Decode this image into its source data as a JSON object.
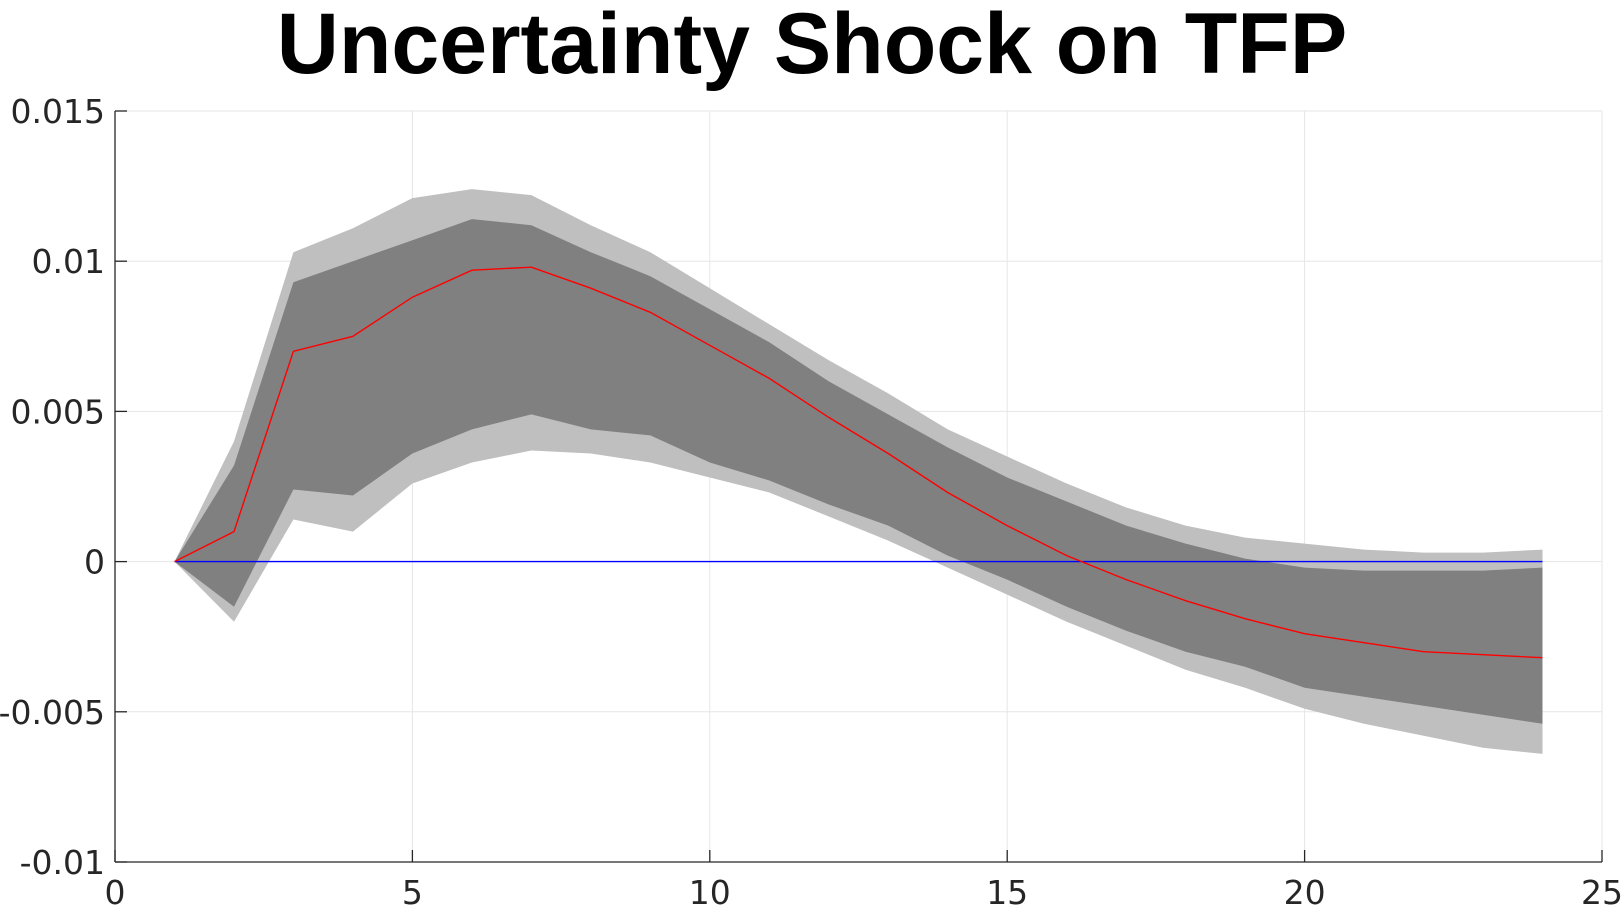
{
  "chart_data": {
    "type": "line",
    "title": "Uncertainty Shock on TFP",
    "xlabel": "",
    "ylabel": "",
    "xlim": [
      0,
      25
    ],
    "ylim": [
      -0.01,
      0.015
    ],
    "x_ticks": [
      0,
      5,
      10,
      15,
      20,
      25
    ],
    "x_tick_labels": [
      "0",
      "5",
      "10",
      "15",
      "20",
      "25"
    ],
    "y_ticks": [
      -0.01,
      -0.005,
      0,
      0.005,
      0.01,
      0.015
    ],
    "y_tick_labels": [
      "-0.01",
      "-0.005",
      "0",
      "0.005",
      "0.01",
      "0.015"
    ],
    "grid": true,
    "x": [
      1,
      2,
      3,
      4,
      5,
      6,
      7,
      8,
      9,
      10,
      11,
      12,
      13,
      14,
      15,
      16,
      17,
      18,
      19,
      20,
      21,
      22,
      23,
      24
    ],
    "bands": [
      {
        "name": "outer-band",
        "color": "#bfbfbf",
        "upper": [
          0,
          0.004,
          0.0103,
          0.0111,
          0.0121,
          0.0124,
          0.0122,
          0.0112,
          0.0103,
          0.0091,
          0.0079,
          0.0067,
          0.0056,
          0.0044,
          0.0035,
          0.0026,
          0.0018,
          0.0012,
          0.0008,
          0.0006,
          0.0004,
          0.0003,
          0.0003,
          0.0004
        ],
        "lower": [
          0,
          -0.002,
          0.0014,
          0.001,
          0.0026,
          0.0033,
          0.0037,
          0.0036,
          0.0033,
          0.0028,
          0.0023,
          0.0015,
          0.0007,
          -0.0002,
          -0.0011,
          -0.002,
          -0.0028,
          -0.0036,
          -0.0042,
          -0.0049,
          -0.0054,
          -0.0058,
          -0.0062,
          -0.0064
        ]
      },
      {
        "name": "inner-band",
        "color": "#808080",
        "upper": [
          0,
          0.0032,
          0.0093,
          0.01,
          0.0107,
          0.0114,
          0.0112,
          0.0103,
          0.0095,
          0.0084,
          0.0073,
          0.006,
          0.0049,
          0.0038,
          0.0028,
          0.002,
          0.0012,
          0.0006,
          0.0001,
          -0.0002,
          -0.0003,
          -0.0003,
          -0.0003,
          -0.0002
        ],
        "lower": [
          0,
          -0.0015,
          0.0024,
          0.0022,
          0.0036,
          0.0044,
          0.0049,
          0.0044,
          0.0042,
          0.0033,
          0.0027,
          0.0019,
          0.0012,
          0.0002,
          -0.0006,
          -0.0015,
          -0.0023,
          -0.003,
          -0.0035,
          -0.0042,
          -0.0045,
          -0.0048,
          -0.0051,
          -0.0054
        ]
      }
    ],
    "series": [
      {
        "name": "median-response",
        "color": "#ff0000",
        "values": [
          0,
          0.001,
          0.007,
          0.0075,
          0.0088,
          0.0097,
          0.0098,
          0.0091,
          0.0083,
          0.0072,
          0.0061,
          0.0048,
          0.0036,
          0.0023,
          0.0012,
          0.0002,
          -0.0006,
          -0.0013,
          -0.0019,
          -0.0024,
          -0.0027,
          -0.003,
          -0.0031,
          -0.0032
        ]
      },
      {
        "name": "zero-line",
        "color": "#0000ff",
        "values": [
          0,
          0,
          0,
          0,
          0,
          0,
          0,
          0,
          0,
          0,
          0,
          0,
          0,
          0,
          0,
          0,
          0,
          0,
          0,
          0,
          0,
          0,
          0,
          0
        ]
      }
    ]
  }
}
